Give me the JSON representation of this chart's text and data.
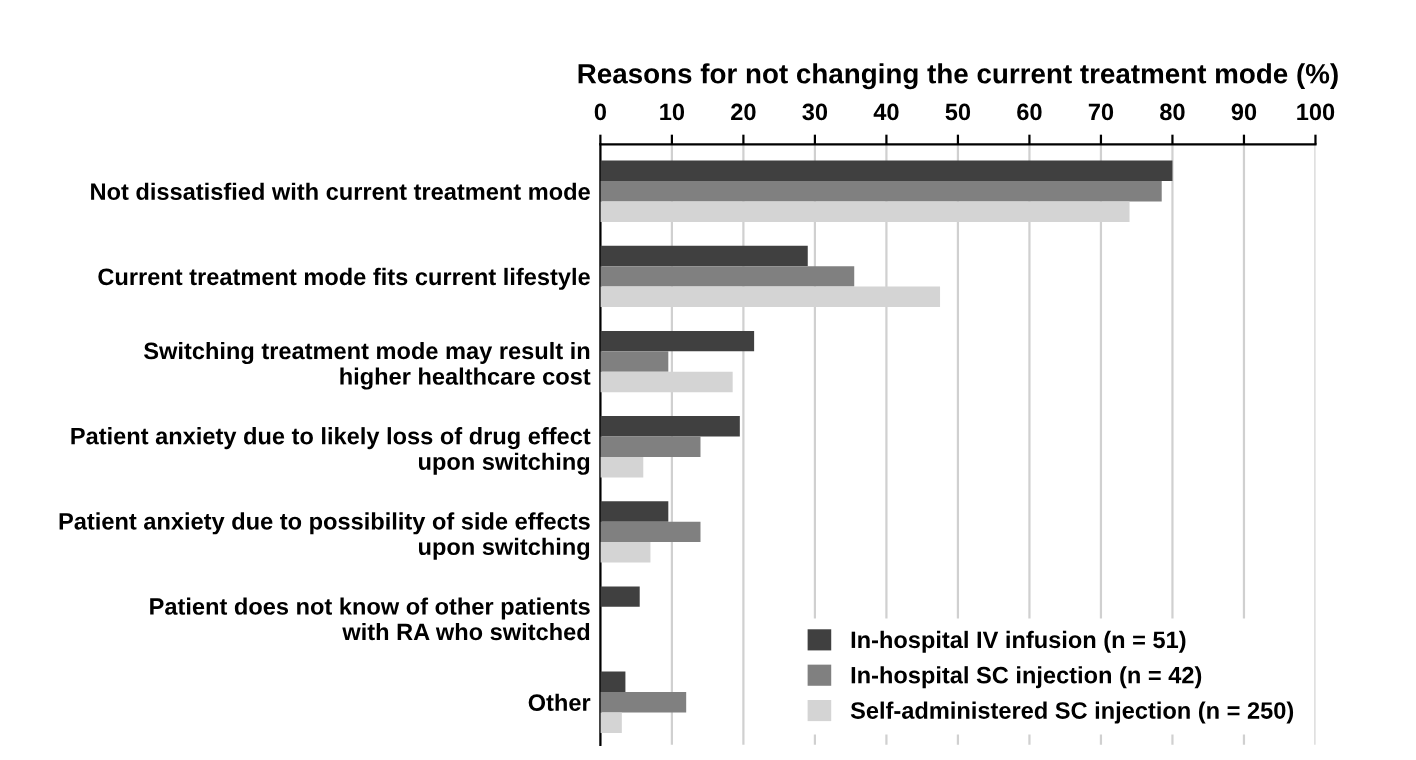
{
  "chart_data": {
    "type": "bar",
    "orientation": "horizontal",
    "title": "Reasons for not changing the current treatment mode (%)",
    "categories": [
      "Not dissatisfied with current treatment mode",
      "Current treatment mode fits current lifestyle",
      "Switching treatment mode may result in\nhigher healthcare cost",
      "Patient anxiety due to likely loss of drug effect\nupon switching",
      "Patient anxiety due to possibility of side effects\nupon switching",
      "Patient does not know of other patients\nwith RA who switched",
      "Other"
    ],
    "series": [
      {
        "name": "In-hospital IV infusion (n = 51)",
        "color": "#404040",
        "values": [
          80,
          29,
          21.5,
          19.5,
          9.5,
          5.5,
          3.5
        ]
      },
      {
        "name": "In-hospital SC injection (n = 42)",
        "color": "#808080",
        "values": [
          78.5,
          35.5,
          9.5,
          14,
          14,
          0,
          12
        ]
      },
      {
        "name": "Self-administered SC injection (n = 250)",
        "color": "#d4d4d4",
        "values": [
          74,
          47.5,
          18.5,
          6,
          7,
          0,
          3
        ]
      }
    ],
    "xlim": [
      0,
      100
    ],
    "xticks": [
      0,
      10,
      20,
      30,
      40,
      50,
      60,
      70,
      80,
      90,
      100
    ],
    "grid": "x",
    "legend": "bottom right"
  }
}
